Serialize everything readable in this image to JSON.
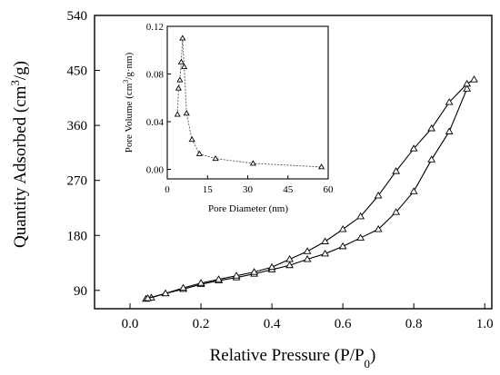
{
  "chart_data": [
    {
      "type": "line",
      "xlabel": "Relative Pressure (P/P",
      "xlabel_sub": "0",
      "xlabel_end": ")",
      "ylabel": "Quantity Adsorbed (cm",
      "ylabel_sup": "3",
      "ylabel_end": "/g)",
      "xlim": [
        -0.1,
        1.02
      ],
      "ylim": [
        60,
        540
      ],
      "x_ticks": [
        0.0,
        0.2,
        0.4,
        0.6,
        0.8,
        1.0
      ],
      "x_tick_labels": [
        "0.0",
        "0.2",
        "0.4",
        "0.6",
        "0.8",
        "1.0"
      ],
      "y_ticks": [
        90,
        180,
        270,
        360,
        450,
        540
      ],
      "y_tick_labels": [
        "90",
        "180",
        "270",
        "360",
        "450",
        "540"
      ],
      "grid": false,
      "series": [
        {
          "marker": "triangle",
          "x": [
            0.045,
            0.06,
            0.1,
            0.15,
            0.2,
            0.25,
            0.3,
            0.35,
            0.4,
            0.45,
            0.5,
            0.55,
            0.6,
            0.65,
            0.7,
            0.75,
            0.8,
            0.85,
            0.9,
            0.95
          ],
          "y": [
            76,
            78,
            85,
            92,
            100,
            106,
            111,
            117,
            124,
            131,
            141,
            150,
            162,
            176,
            190,
            218,
            252,
            304,
            350,
            420
          ]
        },
        {
          "marker": "triangle",
          "x": [
            0.97,
            0.95,
            0.9,
            0.85,
            0.8,
            0.75,
            0.7,
            0.65,
            0.6,
            0.55,
            0.5,
            0.45,
            0.4,
            0.35,
            0.3,
            0.25,
            0.2,
            0.15,
            0.1,
            0.05
          ],
          "y": [
            435,
            428,
            398,
            355,
            322,
            285,
            245,
            211,
            190,
            170,
            154,
            141,
            128,
            120,
            114,
            108,
            102,
            94,
            85,
            77
          ]
        }
      ]
    },
    {
      "type": "line",
      "xlabel": "Pore Diameter (nm)",
      "ylabel": "Pore Volume (cm",
      "ylabel_sup": "3",
      "ylabel_end": "/g·nm)",
      "xlim": [
        0,
        60
      ],
      "ylim": [
        -0.008,
        0.12
      ],
      "x_ticks": [
        0,
        15,
        30,
        45,
        60
      ],
      "x_tick_labels": [
        "0",
        "15",
        "30",
        "45",
        "60"
      ],
      "y_ticks": [
        0.0,
        0.04,
        0.08,
        0.12
      ],
      "y_tick_labels": [
        "0.00",
        "0.04",
        "0.08",
        "0.12"
      ],
      "grid": false,
      "series": [
        {
          "marker": "triangle",
          "x": [
            3.8,
            4.2,
            4.7,
            5.2,
            5.7,
            6.3,
            7.2,
            9.2,
            12.0,
            18.0,
            32.0,
            57.5
          ],
          "y": [
            0.046,
            0.068,
            0.075,
            0.09,
            0.11,
            0.086,
            0.047,
            0.025,
            0.013,
            0.009,
            0.005,
            0.002
          ]
        }
      ]
    }
  ]
}
